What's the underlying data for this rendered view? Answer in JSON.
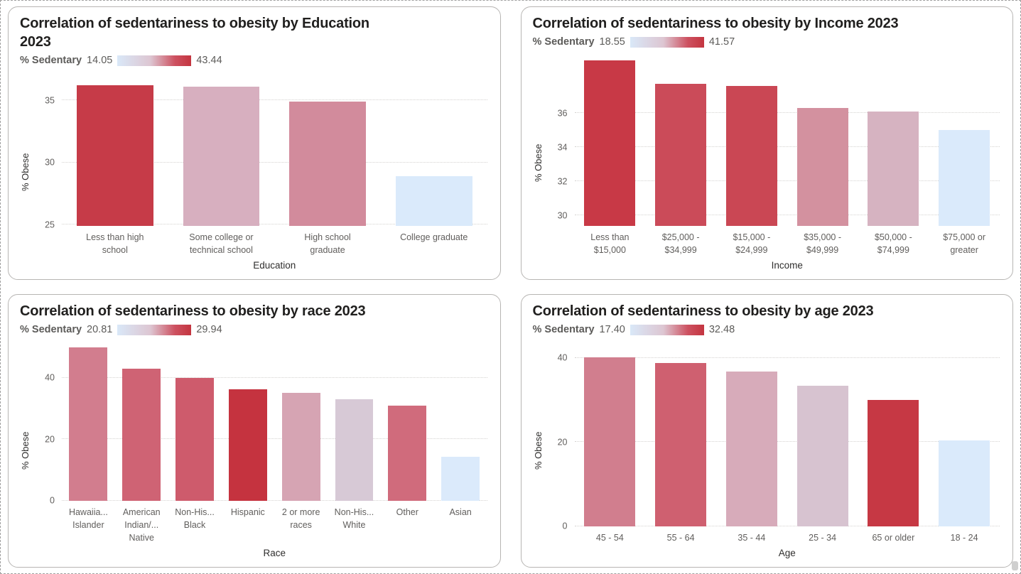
{
  "legend_gradient_stops": [
    "#d9e8f8 0%",
    "#ddc6d2 45%",
    "#cd5160 78%",
    "#c43540 100%"
  ],
  "chart_data": [
    {
      "id": "education",
      "type": "bar",
      "title": "Correlation of sedentariness to obesity by Education\n2023",
      "legend": {
        "label": "% Sedentary",
        "min": "14.05",
        "max": "43.44"
      },
      "xlabel": "Education",
      "ylabel": "% Obese",
      "y_axis": {
        "min": 24.9,
        "max": 37.3,
        "ticks": [
          25,
          30,
          35
        ]
      },
      "grid": true,
      "legend_position": "top",
      "categories": [
        [
          "Less than high",
          "school"
        ],
        [
          "Some college or",
          "technical school"
        ],
        [
          "High school",
          "graduate"
        ],
        [
          "College graduate"
        ]
      ],
      "values": [
        36.2,
        36.1,
        34.9,
        28.9
      ],
      "bar_colors": [
        "#c63b48",
        "#d7afbf",
        "#d28b9c",
        "#daeafb"
      ]
    },
    {
      "id": "income",
      "type": "bar",
      "title": "Correlation of sedentariness to obesity by Income 2023",
      "legend": {
        "label": "% Sedentary",
        "min": "18.55",
        "max": "41.57"
      },
      "xlabel": "Income",
      "ylabel": "% Obese",
      "y_axis": {
        "min": 29.4,
        "max": 39.5,
        "ticks": [
          30,
          32,
          34,
          36
        ]
      },
      "grid": true,
      "legend_position": "top",
      "categories": [
        [
          "Less than",
          "$15,000"
        ],
        [
          "$25,000 -",
          "$34,999"
        ],
        [
          "$15,000 -",
          "$24,999"
        ],
        [
          "$35,000 -",
          "$49,999"
        ],
        [
          "$50,000 -",
          "$74,999"
        ],
        [
          "$75,000 or",
          "greater"
        ]
      ],
      "values": [
        39.1,
        37.7,
        37.6,
        36.3,
        36.1,
        35.0
      ],
      "bar_colors": [
        "#c83946",
        "#cb4b59",
        "#ca4754",
        "#d3919f",
        "#d6b3c1",
        "#daeafb"
      ]
    },
    {
      "id": "race",
      "type": "bar",
      "title": "Correlation of sedentariness to obesity by race 2023",
      "legend": {
        "label": "% Sedentary",
        "min": "20.81",
        "max": "29.94"
      },
      "xlabel": "Race",
      "ylabel": "% Obese",
      "y_axis": {
        "min": 0,
        "max": 52,
        "ticks": [
          0,
          20,
          40
        ]
      },
      "grid": true,
      "legend_position": "top",
      "categories": [
        [
          "Hawaiia...",
          "Islander"
        ],
        [
          "American",
          "Indian/...",
          "Native"
        ],
        [
          "Non-His...",
          "Black"
        ],
        [
          "Hispanic"
        ],
        [
          "2 or more",
          "races"
        ],
        [
          "Non-His...",
          "White"
        ],
        [
          "Other"
        ],
        [
          "Asian"
        ]
      ],
      "values": [
        50.0,
        43.0,
        40.0,
        36.2,
        35.1,
        33.0,
        31.0,
        14.2
      ],
      "bar_colors": [
        "#d27d8e",
        "#cf6374",
        "#ce5b6c",
        "#c5333f",
        "#d6a4b3",
        "#d7c9d6",
        "#d06b7c",
        "#dbeafb"
      ]
    },
    {
      "id": "age",
      "type": "bar",
      "title": "Correlation of sedentariness to obesity by age 2023",
      "legend": {
        "label": "% Sedentary",
        "min": "17.40",
        "max": "32.48"
      },
      "xlabel": "Age",
      "ylabel": "% Obese",
      "y_axis": {
        "min": 0,
        "max": 44,
        "ticks": [
          0,
          20,
          40
        ]
      },
      "grid": true,
      "legend_position": "top",
      "categories": [
        [
          "45 - 54"
        ],
        [
          "55 - 64"
        ],
        [
          "35 - 44"
        ],
        [
          "25 - 34"
        ],
        [
          "65 or older"
        ],
        [
          "18 - 24"
        ]
      ],
      "values": [
        40.2,
        38.7,
        36.8,
        33.3,
        30.0,
        20.4
      ],
      "bar_colors": [
        "#d17e8e",
        "#cf6070",
        "#d7abba",
        "#d7c3d0",
        "#c63844",
        "#daeafb"
      ]
    }
  ]
}
